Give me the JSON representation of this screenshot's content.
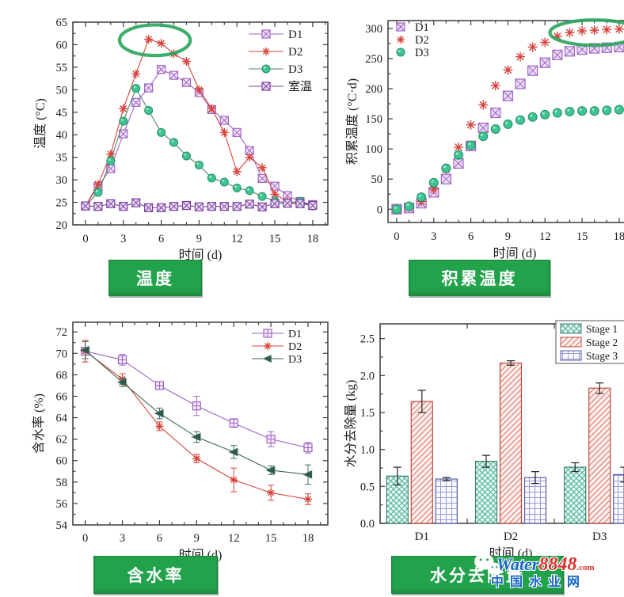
{
  "page": {
    "background": "#ffffff",
    "accent_green": "#23a24c"
  },
  "watermark": {
    "site": "Water",
    "number": "8848",
    "tld": ".com",
    "cn_name": "中国水业网",
    "site_color": "#1566c9",
    "accent_color": "#e03131"
  },
  "chart_data": [
    {
      "id": "temp",
      "panel_label": "温度",
      "type": "line",
      "scatter": false,
      "xlabel": "时间 (d)",
      "ylabel": "温度 (°C)",
      "xlim": [
        -1,
        19.2
      ],
      "ylim": [
        20,
        65
      ],
      "xticks": [
        0,
        3,
        6,
        9,
        12,
        15,
        18
      ],
      "xminor": 1,
      "yticks": [
        20,
        25,
        30,
        35,
        40,
        45,
        50,
        55,
        60,
        65
      ],
      "yminor": 2.5,
      "x": [
        0,
        1,
        2,
        3,
        4,
        5,
        6,
        7,
        8,
        9,
        10,
        11,
        12,
        13,
        14,
        15,
        16,
        17,
        18
      ],
      "series": [
        {
          "name": "D1",
          "color": "#9e63c4",
          "fill": "#f0e6f8",
          "marker": "sqx",
          "ms": 5,
          "values": [
            24.2,
            28.5,
            32.5,
            40.2,
            47.2,
            50.4,
            54.5,
            53.2,
            51.6,
            49.4,
            45.6,
            43.2,
            40.5,
            36.5,
            30.3,
            28.6,
            26.5,
            25.2,
            24.5
          ]
        },
        {
          "name": "D2",
          "color": "#d8433c",
          "marker": "ast",
          "ms": 5.5,
          "values": [
            24.2,
            29.0,
            35.7,
            45.8,
            53.5,
            61.2,
            60.3,
            58.0,
            56.3,
            50.0,
            45.8,
            40.5,
            31.8,
            35.0,
            32.7,
            26.8,
            25.2,
            24.8,
            24.5
          ]
        },
        {
          "name": "D3",
          "color": "#567f6e",
          "fill": "#3fc493",
          "edge": "#1f8f63",
          "marker": "ball",
          "ms": 5,
          "values": [
            24.2,
            27.2,
            34.2,
            43.0,
            50.3,
            45.4,
            40.5,
            38.3,
            35.3,
            33.3,
            30.4,
            29.5,
            28.2,
            27.6,
            26.3,
            25.3,
            24.9,
            25.2,
            24.2
          ]
        },
        {
          "name": "室温",
          "color": "#7b3fa0",
          "fill": "#eadcf2",
          "marker": "sqx",
          "ms": 5,
          "values": [
            24.2,
            24.1,
            24.7,
            24.1,
            24.9,
            23.8,
            23.8,
            24.1,
            24.3,
            24.0,
            24.1,
            24.1,
            24.1,
            24.6,
            24.0,
            24.7,
            24.8,
            24.7,
            24.3
          ]
        }
      ],
      "legend_position": "top-right",
      "annotation_ellipse": {
        "cx": 5.5,
        "cy": 61.0,
        "rx": 2.8,
        "ry": 3.4,
        "color": "#2aa45c"
      }
    },
    {
      "id": "acc",
      "panel_label": "积累温度",
      "type": "scatter",
      "scatter": true,
      "xlabel": "时间 (d)",
      "ylabel": "积累温度 (°C·d)",
      "xlim": [
        -0.7,
        19.8
      ],
      "ylim": [
        -22,
        313
      ],
      "xticks": [
        0,
        3,
        6,
        9,
        12,
        15,
        18
      ],
      "xminor": 1,
      "yticks": [
        0,
        50,
        100,
        150,
        200,
        250,
        300
      ],
      "yminor": 25,
      "x": [
        0,
        1,
        2,
        3,
        4,
        5,
        6,
        7,
        8,
        9,
        10,
        11,
        12,
        13,
        14,
        15,
        16,
        17,
        18
      ],
      "series": [
        {
          "name": "D1",
          "color": "#9e63c4",
          "fill": "#eadcf6",
          "marker": "sqx",
          "ms": 6,
          "values": [
            0,
            2,
            10,
            28,
            50,
            76,
            105,
            135,
            160,
            188,
            208,
            230,
            243,
            256,
            262,
            265,
            267,
            268,
            269
          ]
        },
        {
          "name": "D2",
          "color": "#d8433c",
          "marker": "ast",
          "ms": 6,
          "values": [
            0,
            3,
            13,
            33,
            66,
            103,
            140,
            173,
            205,
            231,
            253,
            269,
            277,
            287,
            293,
            296,
            297,
            298,
            299
          ]
        },
        {
          "name": "D3",
          "color": "#2a9d76",
          "fill": "#3fc493",
          "edge": "#1f8f63",
          "marker": "ball",
          "ms": 5.5,
          "values": [
            0,
            5,
            20,
            44,
            68,
            90,
            106,
            121,
            133,
            141,
            148,
            153,
            157,
            160,
            162,
            163,
            163,
            164,
            165
          ]
        }
      ],
      "legend_position": "top-left",
      "annotation_ellipse": {
        "cx": 16.0,
        "cy": 293,
        "rx": 3.6,
        "ry": 21,
        "color": "#2aa45c"
      }
    },
    {
      "id": "mois",
      "panel_label": "含水率",
      "type": "line",
      "scatter": false,
      "xlabel": "时间 (d)",
      "ylabel": "含水率 (%)",
      "xlim": [
        -1,
        19.6
      ],
      "ylim": [
        54,
        72.9
      ],
      "xticks": [
        0,
        3,
        6,
        9,
        12,
        15,
        18
      ],
      "xminor": 1,
      "yticks": [
        54,
        56,
        58,
        60,
        62,
        64,
        66,
        68,
        70,
        72
      ],
      "yminor": 1,
      "x": [
        0,
        3,
        6,
        9,
        12,
        15,
        18
      ],
      "series": [
        {
          "name": "D1",
          "color": "#9e63c4",
          "fill": "#f3eaf9",
          "marker": "sqplus",
          "ms": 5,
          "values": [
            70.2,
            69.4,
            67.0,
            65.1,
            63.5,
            62.0,
            61.2
          ],
          "errors": [
            1.0,
            0.5,
            0.3,
            0.9,
            0.4,
            0.7,
            0.5
          ]
        },
        {
          "name": "D2",
          "color": "#d8433c",
          "marker": "astdot",
          "ms": 5,
          "values": [
            70.2,
            67.6,
            63.2,
            60.2,
            58.2,
            57.0,
            56.4
          ],
          "errors": [
            1.0,
            0.5,
            0.4,
            0.4,
            1.1,
            0.7,
            0.5
          ]
        },
        {
          "name": "D3",
          "color": "#3e6b5b",
          "fill": "#2e5a4b",
          "marker": "tril",
          "ms": 5.5,
          "values": [
            70.3,
            67.3,
            64.4,
            62.2,
            60.8,
            59.1,
            58.7
          ],
          "errors": [
            0.8,
            0.4,
            0.5,
            0.5,
            0.6,
            0.4,
            0.9
          ]
        }
      ],
      "legend_position": "top-right"
    },
    {
      "id": "water",
      "panel_label": "水分去除量",
      "type": "bar",
      "xlabel": "时间 (d)",
      "ylabel": "水分去除量 (kg)",
      "xlim": [
        0,
        1
      ],
      "ylim": [
        0,
        2.7
      ],
      "yticks": [
        0,
        0.5,
        1.0,
        1.5,
        2.0,
        2.5
      ],
      "ytick_labels": [
        "0.0",
        "0.5",
        "1.0",
        "1.5",
        "2.0",
        "2.5"
      ],
      "yminor": 0.25,
      "categories": [
        "D1",
        "D2",
        "D3"
      ],
      "series": [
        {
          "name": "Stage 1",
          "hatch": "cross",
          "line": "#55b8a1",
          "bg": "#eefaf6",
          "border": "#3f7d6f",
          "values": [
            0.64,
            0.84,
            0.76
          ],
          "errors": [
            0.12,
            0.08,
            0.06
          ]
        },
        {
          "name": "Stage 2",
          "hatch": "diag",
          "line": "#e2857b",
          "bg": "#fdf0ed",
          "border": "#bf4a3e",
          "values": [
            1.65,
            2.17,
            1.83
          ],
          "errors": [
            0.15,
            0.03,
            0.07
          ]
        },
        {
          "name": "Stage 3",
          "hatch": "grid",
          "line": "#989cd6",
          "bg": "#fafaff",
          "border": "#585ca8",
          "values": [
            0.6,
            0.62,
            0.66
          ],
          "errors": [
            0.02,
            0.08,
            0.1
          ]
        }
      ],
      "legend_position": "top-right"
    }
  ]
}
